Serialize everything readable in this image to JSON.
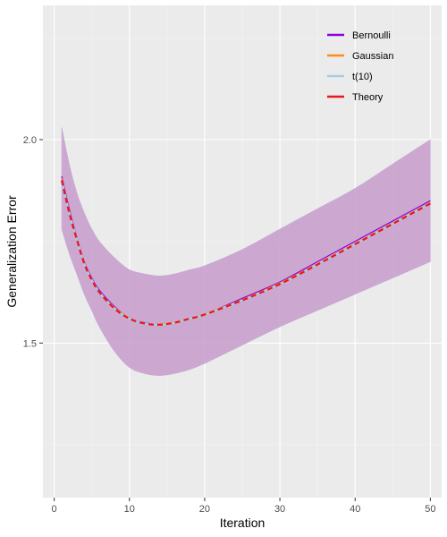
{
  "chart_data": {
    "type": "line",
    "xlabel": "Iteration",
    "ylabel": "Generalization Error",
    "xlim": [
      -1.5,
      51.5
    ],
    "ylim": [
      1.12,
      2.33
    ],
    "x_ticks": [
      0,
      10,
      20,
      30,
      40,
      50
    ],
    "x_tick_labels": [
      "0",
      "10",
      "20",
      "30",
      "40",
      "50"
    ],
    "y_ticks": [
      1.5,
      2.0
    ],
    "y_tick_labels": [
      "1.5",
      "2.0"
    ],
    "x_minor_ticks": [
      5,
      15,
      25,
      35,
      45
    ],
    "y_minor_ticks": [
      1.25,
      1.75,
      2.25
    ],
    "grid": true,
    "legend_position": "top-right",
    "x": [
      1,
      2,
      3,
      4,
      5,
      6,
      8,
      10,
      12,
      14,
      16,
      18,
      20,
      25,
      30,
      35,
      40,
      45,
      50
    ],
    "band": {
      "color": "#c79ccb",
      "lower": [
        1.78,
        1.72,
        1.67,
        1.62,
        1.58,
        1.54,
        1.48,
        1.44,
        1.425,
        1.42,
        1.425,
        1.435,
        1.45,
        1.495,
        1.54,
        1.58,
        1.62,
        1.66,
        1.7
      ],
      "upper": [
        2.03,
        1.94,
        1.87,
        1.82,
        1.78,
        1.75,
        1.71,
        1.68,
        1.67,
        1.665,
        1.67,
        1.68,
        1.69,
        1.73,
        1.78,
        1.83,
        1.88,
        1.94,
        2.0
      ]
    },
    "series": [
      {
        "name": "Bernoulli",
        "color": "#8e00d9",
        "dash": "",
        "width": 1.2,
        "values": [
          1.91,
          1.83,
          1.76,
          1.7,
          1.66,
          1.63,
          1.59,
          1.56,
          1.55,
          1.545,
          1.55,
          1.56,
          1.57,
          1.61,
          1.65,
          1.7,
          1.75,
          1.8,
          1.85
        ]
      },
      {
        "name": "Gaussian",
        "color": "#ff8c1a",
        "dash": "",
        "width": 1.2,
        "values": [
          1.905,
          1.825,
          1.758,
          1.698,
          1.657,
          1.627,
          1.588,
          1.562,
          1.548,
          1.547,
          1.552,
          1.561,
          1.572,
          1.607,
          1.648,
          1.695,
          1.745,
          1.795,
          1.845
        ]
      },
      {
        "name": "t(10)",
        "color": "#a3cde6",
        "dash": "",
        "width": 2.2,
        "values": [
          1.9,
          1.82,
          1.755,
          1.695,
          1.655,
          1.625,
          1.585,
          1.56,
          1.548,
          1.545,
          1.55,
          1.56,
          1.57,
          1.605,
          1.645,
          1.693,
          1.743,
          1.793,
          1.843
        ]
      },
      {
        "name": "Theory",
        "color": "#e8181c",
        "dash": "6 4",
        "width": 2.2,
        "values": [
          1.9,
          1.82,
          1.755,
          1.695,
          1.655,
          1.625,
          1.585,
          1.56,
          1.548,
          1.545,
          1.55,
          1.56,
          1.57,
          1.605,
          1.645,
          1.693,
          1.743,
          1.793,
          1.843
        ]
      }
    ]
  }
}
